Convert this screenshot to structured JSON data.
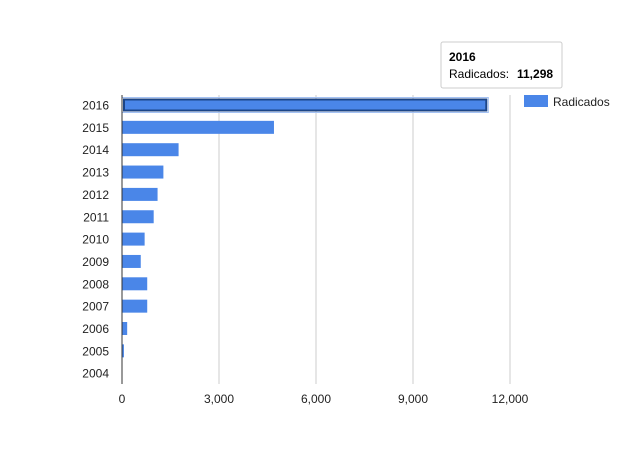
{
  "chart_data": {
    "type": "bar",
    "orientation": "horizontal",
    "categories": [
      "2016",
      "2015",
      "2014",
      "2013",
      "2012",
      "2011",
      "2010",
      "2009",
      "2008",
      "2007",
      "2006",
      "2005",
      "2004"
    ],
    "series": [
      {
        "name": "Radicados",
        "values": [
          11298,
          4700,
          1750,
          1280,
          1100,
          980,
          700,
          580,
          780,
          780,
          160,
          60,
          0
        ]
      }
    ],
    "x_ticks": [
      "0",
      "3,000",
      "6,000",
      "9,000",
      "12,000"
    ],
    "xlim": [
      0,
      12000
    ],
    "grid": true,
    "legend_position": "right",
    "colors": {
      "bar": "#4a86e8",
      "highlight_stroke": "#1c4587",
      "grid": "#cccccc",
      "axis": "#333333",
      "text": "#222222"
    },
    "tooltip": {
      "title": "2016",
      "label": "Radicados:",
      "value": "11,298",
      "category_index": 0
    }
  }
}
